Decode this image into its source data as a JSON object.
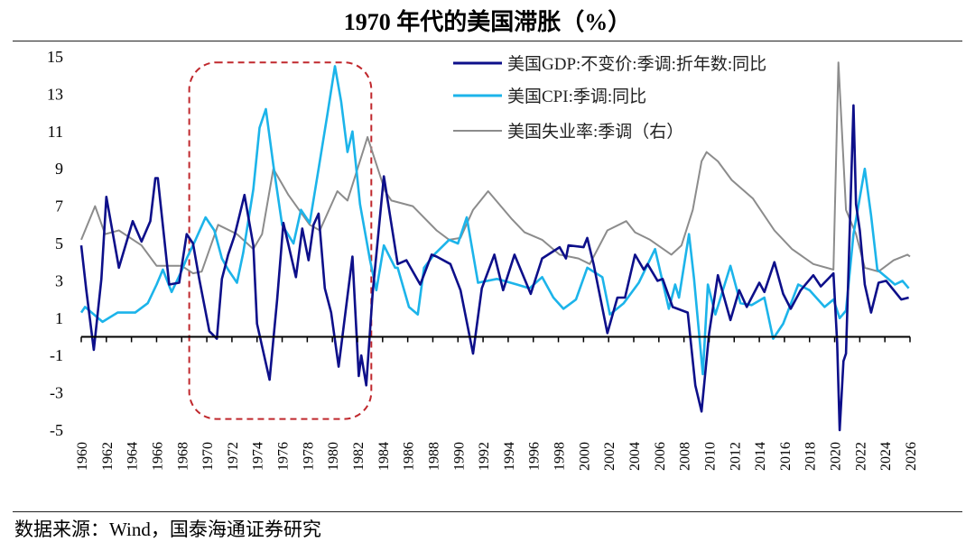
{
  "title": "1970 年代的美国滞胀（%）",
  "source": "数据来源：Wind，国泰海通证券研究",
  "chart_data": {
    "type": "line",
    "title": "1970 年代的美国滞胀（%）",
    "xlabel": "",
    "ylabel": "",
    "xlim": [
      1960,
      2026
    ],
    "ylim": [
      -5,
      15
    ],
    "yticks": [
      "15",
      "13",
      "11",
      "9",
      "7",
      "5",
      "3",
      "1",
      "-1",
      "-3",
      "-5"
    ],
    "xticks": [
      "1960",
      "1962",
      "1964",
      "1966",
      "1968",
      "1970",
      "1972",
      "1974",
      "1976",
      "1978",
      "1980",
      "1982",
      "1984",
      "1986",
      "1988",
      "1990",
      "1992",
      "1994",
      "1996",
      "1998",
      "2000",
      "2002",
      "2004",
      "2006",
      "2008",
      "2010",
      "2012",
      "2014",
      "2016",
      "2018",
      "2020",
      "2022",
      "2024",
      "2026"
    ],
    "grid": false,
    "legend_placement": "top-right",
    "highlight": {
      "x": [
        1968.6,
        1983.1
      ],
      "y": [
        -4.4,
        14.7
      ],
      "color": "#c0282d",
      "style": "dashed"
    },
    "series": [
      {
        "name": "美国GDP:不变价:季调:折年数:同比",
        "color": "#0d0f8a",
        "axis": "left",
        "x": [
          1960,
          1960.4,
          1961.0,
          1961.6,
          1962.0,
          1963.0,
          1964.1,
          1964.8,
          1965.5,
          1965.9,
          1966.1,
          1967.0,
          1967.8,
          1968.4,
          1968.9,
          1969.4,
          1970.2,
          1970.8,
          1971.2,
          1971.7,
          1972.2,
          1973.0,
          1973.7,
          1974.0,
          1975.0,
          1975.6,
          1976.1,
          1977.1,
          1977.6,
          1978.1,
          1978.5,
          1978.9,
          1979.4,
          1979.9,
          1980.5,
          1981.6,
          1982.1,
          1982.3,
          1982.7,
          1983.2,
          1984.1,
          1985.2,
          1985.9,
          1987.0,
          1987.9,
          1988.3,
          1989.4,
          1990.2,
          1991.2,
          1991.9,
          1992.9,
          1993.6,
          1994.5,
          1995.8,
          1996.7,
          1998.1,
          1998.6,
          1998.8,
          2000.0,
          2000.3,
          2000.8,
          2001.9,
          2002.7,
          2003.3,
          2004.1,
          2004.8,
          2005.1,
          2005.9,
          2006.3,
          2007.1,
          2008.3,
          2008.9,
          2009.4,
          2010.0,
          2010.7,
          2011.7,
          2012.4,
          2013.0,
          2014.0,
          2014.4,
          2015.2,
          2015.9,
          2016.5,
          2017.3,
          2018.3,
          2018.9,
          2019.9,
          2020.2,
          2020.4,
          2020.7,
          2020.9,
          2021.5,
          2021.7,
          2022.0,
          2022.4,
          2022.9,
          2023.5,
          2024.1,
          2025.3,
          2025.9
        ],
        "y": [
          4.9,
          2.5,
          -0.7,
          3.1,
          7.5,
          3.7,
          6.2,
          5.1,
          6.2,
          8.5,
          8.5,
          2.8,
          2.9,
          5.5,
          5.0,
          3.1,
          0.3,
          -0.1,
          3.1,
          4.4,
          5.4,
          7.6,
          4.9,
          0.7,
          -2.3,
          2.0,
          6.1,
          3.2,
          5.8,
          4.1,
          6.0,
          6.6,
          2.6,
          1.3,
          -1.6,
          4.3,
          -2.1,
          -1.0,
          -2.6,
          2.3,
          8.6,
          3.9,
          4.1,
          2.8,
          4.4,
          4.3,
          3.9,
          2.5,
          -0.9,
          2.6,
          4.4,
          2.5,
          4.4,
          2.3,
          4.2,
          4.8,
          4.2,
          4.9,
          4.8,
          5.3,
          3.9,
          0.2,
          2.1,
          2.1,
          4.4,
          3.6,
          3.9,
          3.0,
          3.1,
          1.6,
          1.3,
          -2.6,
          -4.0,
          0.2,
          3.3,
          0.9,
          2.5,
          1.6,
          2.9,
          2.4,
          4.0,
          2.3,
          1.5,
          2.5,
          3.3,
          2.7,
          3.4,
          -0.3,
          -5.0,
          -1.3,
          -0.9,
          12.4,
          7.1,
          5.7,
          2.8,
          1.3,
          2.9,
          3.0,
          2.0,
          2.1
        ]
      },
      {
        "name": "美国CPI:季调:同比",
        "color": "#1cb4ea",
        "axis": "left",
        "x": [
          1960,
          1960.3,
          1961.7,
          1962.9,
          1964.3,
          1965.3,
          1966.0,
          1966.5,
          1967.2,
          1967.9,
          1968.4,
          1969.1,
          1969.9,
          1970.6,
          1971.2,
          1971.7,
          1972.4,
          1972.9,
          1973.7,
          1974.2,
          1974.7,
          1975.3,
          1976.0,
          1976.9,
          1977.5,
          1978.2,
          1978.9,
          1979.6,
          1980.2,
          1980.7,
          1981.2,
          1981.6,
          1982.2,
          1983.0,
          1983.5,
          1984.1,
          1985.0,
          1985.2,
          1986.1,
          1986.8,
          1987.3,
          1988.1,
          1989.3,
          1990.0,
          1990.7,
          1991.6,
          1993.1,
          1994.7,
          1995.7,
          1996.7,
          1997.6,
          1998.4,
          1999.4,
          2000.3,
          2001.5,
          2002.1,
          2003.2,
          2004.4,
          2005.7,
          2006.8,
          2007.3,
          2007.6,
          2008.4,
          2008.8,
          2009.5,
          2009.9,
          2010.5,
          2011.7,
          2012.5,
          2013.4,
          2014.4,
          2015.1,
          2015.9,
          2017.1,
          2018.0,
          2019.2,
          2019.9,
          2020.4,
          2020.9,
          2021.5,
          2022.4,
          2022.9,
          2023.4,
          2024.1,
          2024.8,
          2025.4,
          2025.9
        ],
        "y": [
          1.3,
          1.6,
          0.8,
          1.3,
          1.3,
          1.8,
          2.8,
          3.6,
          2.4,
          3.4,
          4.2,
          5.2,
          6.4,
          5.7,
          4.2,
          3.6,
          2.9,
          4.5,
          7.9,
          11.2,
          12.2,
          9.2,
          6.0,
          5.0,
          6.8,
          6.1,
          9.0,
          11.9,
          14.5,
          12.6,
          9.9,
          11.0,
          7.1,
          4.1,
          2.5,
          4.9,
          3.7,
          3.7,
          1.6,
          1.2,
          3.7,
          4.4,
          5.2,
          5.0,
          6.4,
          2.9,
          3.1,
          2.8,
          2.6,
          3.2,
          2.1,
          1.5,
          2.0,
          3.7,
          3.2,
          1.2,
          1.8,
          2.9,
          4.7,
          1.5,
          2.8,
          2.1,
          5.5,
          3.1,
          -2.0,
          2.8,
          1.2,
          3.8,
          1.8,
          1.7,
          2.1,
          -0.1,
          0.7,
          2.8,
          2.5,
          1.6,
          2.0,
          1.0,
          1.4,
          5.5,
          9.0,
          6.5,
          3.6,
          3.2,
          2.8,
          3.0,
          2.6
        ]
      },
      {
        "name": "美国失业率:季调（右）",
        "color": "#8c8c8c",
        "axis": "right",
        "x": [
          1960,
          1961.1,
          1961.9,
          1963.0,
          1964.8,
          1966.0,
          1968.0,
          1968.9,
          1969.6,
          1970.9,
          1972.4,
          1973.7,
          1974.4,
          1975.3,
          1976.5,
          1978.2,
          1979.0,
          1980.4,
          1981.2,
          1982.8,
          1984.2,
          1984.7,
          1986.4,
          1988.3,
          1989.3,
          1990.2,
          1991.2,
          1992.4,
          1994.3,
          1995.3,
          1996.7,
          1998.1,
          1999.6,
          2000.5,
          2001.9,
          2003.4,
          2004.1,
          2005.3,
          2007.0,
          2007.8,
          2008.7,
          2009.4,
          2009.8,
          2010.7,
          2011.8,
          2013.5,
          2015.2,
          2016.6,
          2018.3,
          2019.9,
          2020.3,
          2020.9,
          2021.7,
          2022.4,
          2023.5,
          2024.7,
          2025.8,
          2026.0
        ],
        "y": [
          5.2,
          7.0,
          5.5,
          5.7,
          4.9,
          3.8,
          3.8,
          3.4,
          3.5,
          6.0,
          5.5,
          4.7,
          5.5,
          9.0,
          7.6,
          6.0,
          5.7,
          7.8,
          7.3,
          10.7,
          7.8,
          7.3,
          7.0,
          5.7,
          5.2,
          5.3,
          6.8,
          7.8,
          6.3,
          5.6,
          5.2,
          4.4,
          4.2,
          3.9,
          5.7,
          6.2,
          5.6,
          5.2,
          4.4,
          4.9,
          6.8,
          9.4,
          9.9,
          9.4,
          8.4,
          7.4,
          5.7,
          4.7,
          3.9,
          3.6,
          14.7,
          6.8,
          5.5,
          3.7,
          3.5,
          4.1,
          4.4,
          4.3
        ]
      }
    ]
  }
}
